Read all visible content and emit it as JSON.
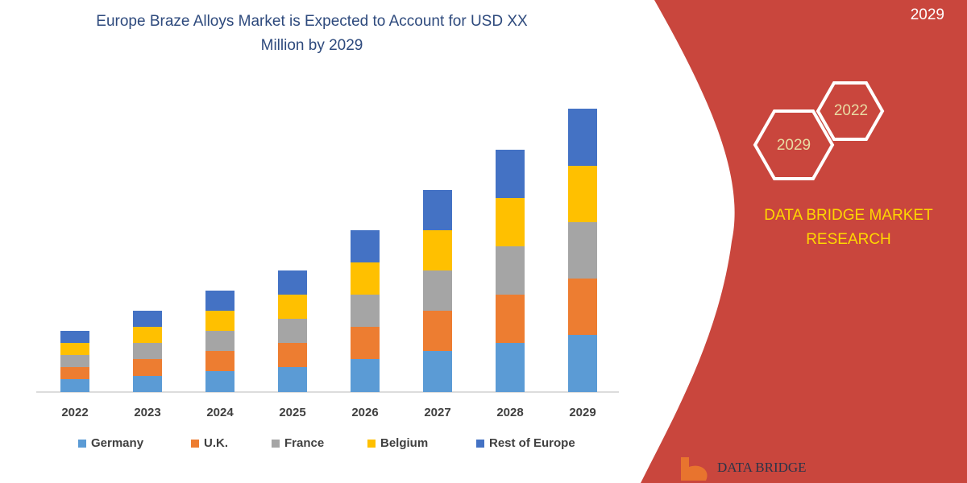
{
  "chart_data": {
    "type": "stacked-bar",
    "title": [
      "Europe Braze Alloys Market is Expected to Account for USD XX",
      "Million by 2029"
    ],
    "categories": [
      "2022",
      "2023",
      "2024",
      "2025",
      "2026",
      "2027",
      "2028",
      "2029"
    ],
    "series": [
      {
        "name": "Germany",
        "color": "#5b9bd5",
        "values": [
          16,
          20,
          26,
          31,
          41,
          51,
          61,
          71
        ]
      },
      {
        "name": "U.K.",
        "color": "#ed7d31",
        "values": [
          15,
          21,
          25,
          30,
          40,
          50,
          60,
          70
        ]
      },
      {
        "name": "France",
        "color": "#a5a5a5",
        "values": [
          15,
          20,
          25,
          30,
          40,
          50,
          60,
          70
        ]
      },
      {
        "name": "Belgium",
        "color": "#ffc000",
        "values": [
          15,
          20,
          25,
          30,
          40,
          50,
          60,
          70
        ]
      },
      {
        "name": "Rest of Europe",
        "color": "#4472c4",
        "values": [
          15,
          20,
          25,
          30,
          40,
          50,
          60,
          71
        ]
      }
    ],
    "ylim": [
      0,
      360
    ]
  },
  "panel": {
    "corner_year": "2029",
    "hex_years": [
      "2022",
      "2029"
    ],
    "brand": [
      "DATA BRIDGE MARKET",
      "RESEARCH"
    ],
    "logo": "DATA BRIDGE"
  }
}
